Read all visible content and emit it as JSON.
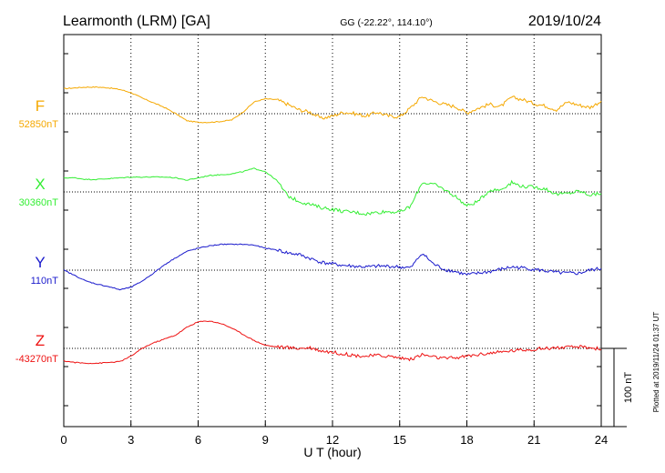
{
  "header": {
    "station": "Learmonth (LRM)  [GA]",
    "coords": "GG (-22.22°, 114.10°)",
    "date": "2019/10/24"
  },
  "footer": {
    "plotted": "Plotted at 2019/11/24 01:37  UT"
  },
  "chart_data": {
    "type": "line",
    "xlabel": "U T (hour)",
    "x_ticks": [
      "0",
      "3",
      "6",
      "9",
      "12",
      "15",
      "18",
      "21",
      "24"
    ],
    "xlim": [
      0,
      24
    ],
    "scale_bar_label": "100 nT",
    "scale_bar_nT": 100,
    "series": [
      {
        "name": "F",
        "baseline_label": "52850nT",
        "baseline_nT": 52850,
        "color": "#f5a800",
        "x": [
          0,
          0.5,
          1,
          1.5,
          2,
          2.5,
          3,
          3.5,
          4,
          4.5,
          5,
          5.5,
          6,
          6.5,
          7,
          7.5,
          8,
          8.5,
          9,
          9.5,
          10,
          10.5,
          11,
          11.5,
          12,
          12.5,
          13,
          13.5,
          14,
          14.5,
          15,
          15.5,
          16,
          16.5,
          17,
          17.5,
          18,
          18.5,
          19,
          19.5,
          20,
          20.5,
          21,
          21.5,
          22,
          22.5,
          23,
          23.5,
          24
        ],
        "values": [
          32,
          33,
          34,
          34,
          33,
          31,
          27,
          20,
          14,
          8,
          0,
          -9,
          -11,
          -11,
          -10,
          -8,
          2,
          15,
          19,
          18,
          12,
          5,
          2,
          -6,
          -3,
          2,
          0,
          -3,
          2,
          -3,
          -4,
          8,
          22,
          16,
          12,
          9,
          1,
          7,
          12,
          9,
          21,
          18,
          13,
          10,
          5,
          15,
          11,
          8,
          16
        ]
      },
      {
        "name": "X",
        "baseline_label": "30360nT",
        "baseline_nT": 30360,
        "color": "#33ee33",
        "x": [
          0,
          0.5,
          1,
          1.5,
          2,
          2.5,
          3,
          3.5,
          4,
          4.5,
          5,
          5.5,
          6,
          6.5,
          7,
          7.5,
          8,
          8.5,
          9,
          9.5,
          10,
          10.5,
          11,
          11.5,
          12,
          12.5,
          13,
          13.5,
          14,
          14.5,
          15,
          15.5,
          16,
          16.5,
          17,
          17.5,
          18,
          18.5,
          19,
          19.5,
          20,
          20.5,
          21,
          21.5,
          22,
          22.5,
          23,
          23.5,
          24
        ],
        "values": [
          18,
          18,
          16,
          16,
          17,
          18,
          19,
          19,
          19,
          19,
          18,
          15,
          18,
          21,
          22,
          23,
          26,
          30,
          26,
          15,
          -5,
          -12,
          -16,
          -20,
          -22,
          -25,
          -26,
          -28,
          -26,
          -25,
          -26,
          -18,
          12,
          10,
          3,
          -6,
          -18,
          -12,
          2,
          3,
          12,
          7,
          6,
          4,
          -3,
          -2,
          1,
          -4,
          -2
        ]
      },
      {
        "name": "Y",
        "baseline_label": "110nT",
        "baseline_nT": 110,
        "color": "#1a1acc",
        "x": [
          0,
          0.5,
          1,
          1.5,
          2,
          2.5,
          3,
          3.5,
          4,
          4.5,
          5,
          5.5,
          6,
          6.5,
          7,
          7.5,
          8,
          8.5,
          9,
          9.5,
          10,
          10.5,
          11,
          11.5,
          12,
          12.5,
          13,
          13.5,
          14,
          14.5,
          15,
          15.5,
          16,
          16.5,
          17,
          17.5,
          18,
          18.5,
          19,
          19.5,
          20,
          20.5,
          21,
          21.5,
          22,
          22.5,
          23,
          23.5,
          24
        ],
        "values": [
          0,
          -7,
          -14,
          -18,
          -21,
          -25,
          -22,
          -14,
          -4,
          7,
          16,
          24,
          28,
          31,
          33,
          33,
          33,
          32,
          28,
          26,
          22,
          20,
          15,
          10,
          8,
          6,
          5,
          4,
          5,
          5,
          4,
          3,
          22,
          8,
          1,
          -2,
          -6,
          -4,
          -2,
          1,
          4,
          3,
          1,
          -1,
          -3,
          -4,
          -4,
          0,
          2
        ]
      },
      {
        "name": "Z",
        "baseline_label": "-43270nT",
        "baseline_nT": -43270,
        "color": "#ee1111",
        "x": [
          0,
          0.5,
          1,
          1.5,
          2,
          2.5,
          3,
          3.5,
          4,
          4.5,
          5,
          5.5,
          6,
          6.5,
          7,
          7.5,
          8,
          8.5,
          9,
          9.5,
          10,
          10.5,
          11,
          11.5,
          12,
          12.5,
          13,
          13.5,
          14,
          14.5,
          15,
          15.5,
          16,
          16.5,
          17,
          17.5,
          18,
          18.5,
          19,
          19.5,
          20,
          20.5,
          21,
          21.5,
          22,
          22.5,
          23,
          23.5,
          24
        ],
        "values": [
          -16,
          -18,
          -19,
          -19,
          -18,
          -17,
          -10,
          0,
          7,
          12,
          17,
          27,
          34,
          35,
          32,
          26,
          18,
          10,
          4,
          2,
          1,
          0,
          1,
          -3,
          -5,
          -7,
          -9,
          -10,
          -9,
          -10,
          -12,
          -14,
          -8,
          -11,
          -13,
          -12,
          -10,
          -8,
          -6,
          -5,
          -3,
          -2,
          -1,
          0,
          1,
          1,
          2,
          1,
          -1
        ]
      }
    ]
  }
}
